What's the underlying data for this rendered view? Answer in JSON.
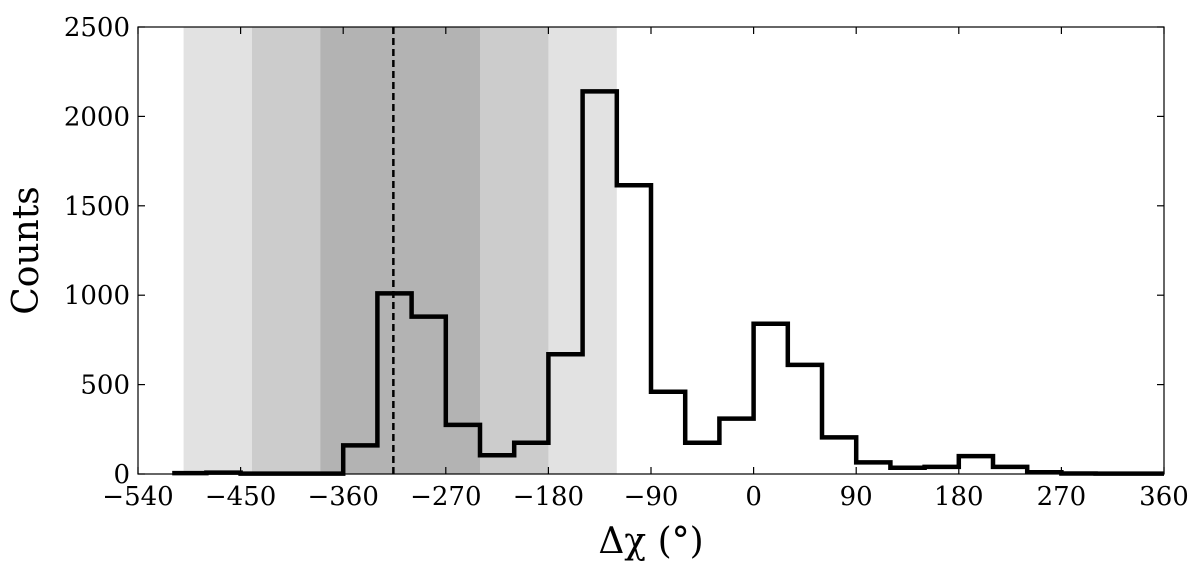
{
  "chart_data": {
    "type": "histogram",
    "title": "",
    "xlabel": "Δχ (°)",
    "ylabel": "Counts",
    "xlim": [
      -540,
      360
    ],
    "ylim": [
      0,
      2500
    ],
    "xticks": [
      -540,
      -450,
      -360,
      -270,
      -180,
      -90,
      0,
      90,
      180,
      270,
      360
    ],
    "xtick_labels": [
      "−540",
      "−450",
      "−360",
      "−270",
      "−180",
      "−90",
      "0",
      "90",
      "180",
      "270",
      "360"
    ],
    "yticks": [
      0,
      500,
      1000,
      1500,
      2000,
      2500
    ],
    "ytick_labels": [
      "0",
      "500",
      "1000",
      "1500",
      "2000",
      "2500"
    ],
    "grid": false,
    "bin_width": 30,
    "bin_edges": [
      -510,
      -480,
      -450,
      -420,
      -390,
      -360,
      -330,
      -300,
      -270,
      -240,
      -210,
      -180,
      -150,
      -120,
      -90,
      -60,
      -30,
      0,
      30,
      60,
      90,
      120,
      150,
      180,
      210,
      240,
      270,
      300,
      330,
      360
    ],
    "counts": [
      5,
      8,
      2,
      2,
      2,
      160,
      1010,
      880,
      275,
      105,
      175,
      670,
      2140,
      1615,
      460,
      175,
      310,
      840,
      610,
      205,
      65,
      35,
      40,
      100,
      40,
      10,
      3,
      2,
      2
    ],
    "shaded_bands": [
      {
        "x0": -500,
        "x1": -120,
        "color": "#e2e2e2"
      },
      {
        "x0": -440,
        "x1": -180,
        "color": "#cccccc"
      },
      {
        "x0": -380,
        "x1": -240,
        "color": "#b3b3b3"
      }
    ],
    "vline": {
      "x": -316,
      "style": "dashed",
      "color": "#000000"
    },
    "line_color": "#000000"
  }
}
